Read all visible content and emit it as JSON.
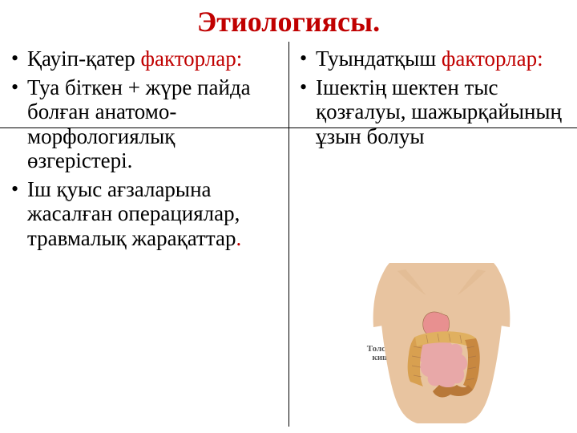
{
  "title": {
    "text": "Этиологиясы.",
    "color": "#c00000"
  },
  "accent_color": "#c00000",
  "text_color": "#000000",
  "left": {
    "heading_black": "Қауіп-қатер ",
    "heading_accent": "факторлар:",
    "items": [
      "Туа біткен + жүре пайда болған анатомо-морфологиялық өзгерістері.",
      "Іш қуыс ағзаларына жасалған операциялар, травмалық жарақаттар"
    ],
    "last_period_accent": "."
  },
  "right": {
    "heading_black": "Туындатқыш ",
    "heading_accent": "факторлар:",
    "items": [
      "Ішектің шектен тыс қозғалуы, шажырқайының ұзын болуы"
    ]
  },
  "figure": {
    "label": "Толстая\nкишка",
    "skin_color": "#e8c4a0",
    "skin_shadow": "#d4a878",
    "stomach_color": "#e89090",
    "small_intestine": "#e8a8a8",
    "colon_ascending": "#d8a050",
    "colon_transverse": "#e0b060",
    "colon_descending": "#c88840",
    "sigmoid": "#b87838",
    "outline": "#9a6a48"
  }
}
